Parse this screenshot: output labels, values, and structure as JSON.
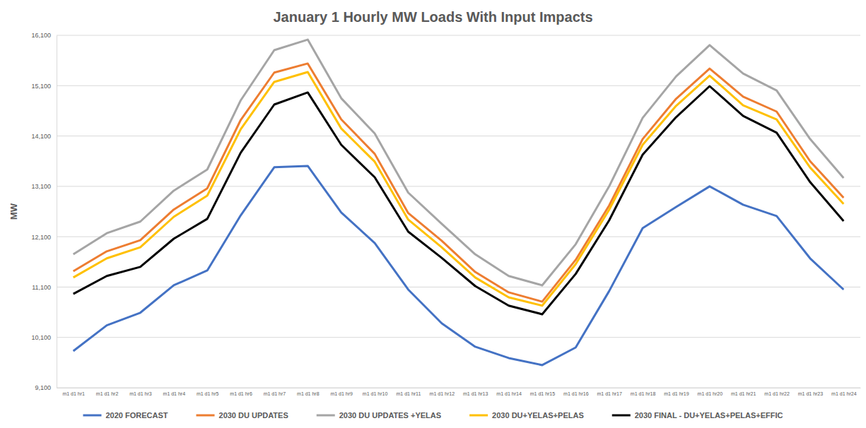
{
  "chart_data": {
    "type": "line",
    "title": "January 1 Hourly MW Loads With Input Impacts",
    "y_label": "MW",
    "categories": [
      "m1 d1 hr1",
      "m1 d1 hr2",
      "m1 d1 hr3",
      "m1 d1 hr4",
      "m1 d1 hr5",
      "m1 d1 hr6",
      "m1 d1 hr7",
      "m1 d1 hr8",
      "m1 d1 hr9",
      "m1 d1 hr10",
      "m1 d1 hr11",
      "m1 d1 hr12",
      "m1 d1 hr13",
      "m1 d1 hr14",
      "m1 d1 hr15",
      "m1 d1 hr16",
      "m1 d1 hr17",
      "m1 d1 hr18",
      "m1 d1 hr19",
      "m1 d1 hr20",
      "m1 d1 hr21",
      "m1 d1 hr22",
      "m1 d1 hr23",
      "m1 d1 hr24"
    ],
    "series": [
      {
        "name": "2020  FORECAST",
        "color": "#4472c4",
        "values": [
          9830,
          10340,
          10590,
          11135,
          11430,
          12525,
          13480,
          13505,
          12580,
          11975,
          11050,
          10380,
          9915,
          9690,
          9550,
          9900,
          11020,
          12270,
          12690,
          13100,
          12735,
          12510,
          11670,
          11050
        ]
      },
      {
        "name": "2030 DU UPDATES",
        "color": "#ed7d31",
        "values": [
          11415,
          11810,
          12030,
          12640,
          13060,
          14420,
          15360,
          15540,
          14430,
          13745,
          12570,
          12020,
          11400,
          10995,
          10810,
          11640,
          12720,
          14040,
          14840,
          15440,
          14880,
          14585,
          13600,
          12875
        ]
      },
      {
        "name": "2030 DU UPDATES +YELAS",
        "color": "#a5a5a5",
        "values": [
          11750,
          12170,
          12400,
          13015,
          13435,
          14810,
          15805,
          16015,
          14850,
          14150,
          12975,
          12355,
          11750,
          11320,
          11135,
          11950,
          13100,
          14460,
          15285,
          15905,
          15340,
          15005,
          14040,
          13265
        ]
      },
      {
        "name": "2030 DU+YELAS+PELAS",
        "color": "#ffc000",
        "values": [
          11290,
          11670,
          11890,
          12495,
          12915,
          14235,
          15175,
          15370,
          14250,
          13590,
          12440,
          11890,
          11290,
          10895,
          10730,
          11555,
          12635,
          13925,
          14700,
          15300,
          14710,
          14430,
          13475,
          12750
        ]
      },
      {
        "name": "2030 FINAL - DU+YELAS+PELAS+EFFIC",
        "color": "#000000",
        "values": [
          10965,
          11320,
          11500,
          12060,
          12455,
          13770,
          14725,
          14965,
          13925,
          13280,
          12200,
          11680,
          11120,
          10730,
          10560,
          11360,
          12425,
          13730,
          14475,
          15090,
          14500,
          14165,
          13185,
          12410
        ]
      }
    ],
    "ylim": [
      9100,
      16100
    ],
    "yticks": [
      {
        "value": 9100,
        "label": "9,100"
      },
      {
        "value": 10100,
        "label": "10,100"
      },
      {
        "value": 11100,
        "label": "11,100"
      },
      {
        "value": 12100,
        "label": "12,100"
      },
      {
        "value": 13100,
        "label": "13,100"
      },
      {
        "value": 14100,
        "label": "14,100"
      },
      {
        "value": 15100,
        "label": "15,100"
      },
      {
        "value": 16100,
        "label": "16,100"
      }
    ],
    "grid": true,
    "legend": "bottom"
  }
}
